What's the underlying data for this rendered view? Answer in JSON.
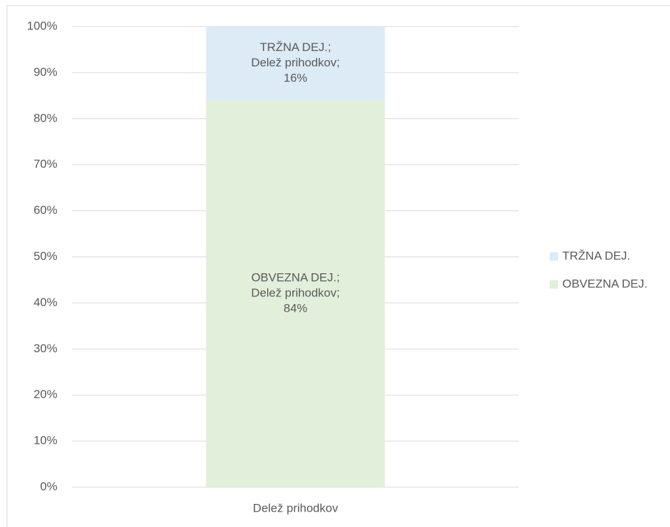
{
  "chart_data": {
    "type": "stacked_bar",
    "categories": [
      "Delež prihodkov"
    ],
    "series": [
      {
        "name": "OBVEZNA DEJ.",
        "color": "#e2efda",
        "values": [
          84
        ],
        "value_labels": [
          "84%"
        ]
      },
      {
        "name": "TRŽNA DEJ.",
        "color": "#ddebf7",
        "values": [
          16
        ],
        "value_labels": [
          "16%"
        ]
      }
    ],
    "ylim": [
      0,
      100
    ],
    "yticks": [
      {
        "value": 0,
        "label": "0%"
      },
      {
        "value": 10,
        "label": "10%"
      },
      {
        "value": 20,
        "label": "20%"
      },
      {
        "value": 30,
        "label": "30%"
      },
      {
        "value": 40,
        "label": "40%"
      },
      {
        "value": 50,
        "label": "50%"
      },
      {
        "value": 60,
        "label": "60%"
      },
      {
        "value": 70,
        "label": "70%"
      },
      {
        "value": 80,
        "label": "80%"
      },
      {
        "value": 90,
        "label": "90%"
      },
      {
        "value": 100,
        "label": "100%"
      }
    ],
    "grid": true,
    "legend": "right"
  }
}
